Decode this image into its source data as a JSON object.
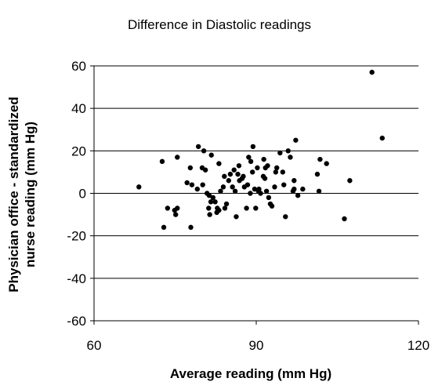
{
  "chart_data": {
    "type": "scatter",
    "title": "Difference in Diastolic readings",
    "xlabel": "Average reading (mm Hg)",
    "ylabel_lines": [
      "Physician office - standardized",
      "nurse reading (mm Hg)"
    ],
    "xlim": [
      60,
      120
    ],
    "ylim": [
      -60,
      60
    ],
    "x_ticks": [
      60,
      90,
      120
    ],
    "y_ticks": [
      -60,
      -40,
      -20,
      0,
      20,
      40,
      60
    ],
    "grid": "horizontal",
    "legend": "none",
    "marker_color": "#000000",
    "points": [
      [
        68.3,
        3
      ],
      [
        72.6,
        15
      ],
      [
        72.9,
        -16
      ],
      [
        73.6,
        -7
      ],
      [
        74.9,
        -8
      ],
      [
        75.1,
        -10
      ],
      [
        75.4,
        17
      ],
      [
        75.4,
        -7
      ],
      [
        77.2,
        5
      ],
      [
        77.8,
        12
      ],
      [
        78.1,
        4
      ],
      [
        77.9,
        -16
      ],
      [
        79.1,
        2
      ],
      [
        79.3,
        22
      ],
      [
        80.0,
        12
      ],
      [
        80.3,
        20
      ],
      [
        80.6,
        11
      ],
      [
        80.1,
        4
      ],
      [
        80.9,
        0
      ],
      [
        81.3,
        -1
      ],
      [
        81.6,
        -4
      ],
      [
        81.4,
        -10
      ],
      [
        81.2,
        -7
      ],
      [
        81.7,
        18
      ],
      [
        82.0,
        -2
      ],
      [
        82.4,
        -4
      ],
      [
        82.7,
        -9
      ],
      [
        82.8,
        -7
      ],
      [
        83.1,
        -8
      ],
      [
        83.1,
        14
      ],
      [
        83.4,
        1
      ],
      [
        83.9,
        3
      ],
      [
        84.1,
        8
      ],
      [
        84.2,
        -7
      ],
      [
        84.5,
        -5
      ],
      [
        84.9,
        6
      ],
      [
        85.6,
        3
      ],
      [
        85.9,
        11
      ],
      [
        86.3,
        -11
      ],
      [
        86.6,
        9
      ],
      [
        86.8,
        13
      ],
      [
        86.9,
        6
      ],
      [
        87.4,
        7
      ],
      [
        87.6,
        8
      ],
      [
        87.8,
        3
      ],
      [
        88.2,
        -7
      ],
      [
        88.4,
        4
      ],
      [
        88.6,
        17
      ],
      [
        89.0,
        15
      ],
      [
        89.3,
        10
      ],
      [
        89.4,
        22
      ],
      [
        89.7,
        2
      ],
      [
        89.9,
        -7
      ],
      [
        90.2,
        12
      ],
      [
        90.4,
        1
      ],
      [
        90.5,
        2
      ],
      [
        90.8,
        0
      ],
      [
        91.3,
        8
      ],
      [
        91.4,
        16
      ],
      [
        91.6,
        7
      ],
      [
        91.7,
        12
      ],
      [
        91.9,
        1
      ],
      [
        92.3,
        -2
      ],
      [
        92.6,
        -5
      ],
      [
        92.9,
        -6
      ],
      [
        93.4,
        3
      ],
      [
        93.6,
        10
      ],
      [
        93.8,
        12
      ],
      [
        94.4,
        19
      ],
      [
        94.9,
        10
      ],
      [
        95.1,
        4
      ],
      [
        95.4,
        -11
      ],
      [
        95.9,
        20
      ],
      [
        96.3,
        17
      ],
      [
        96.8,
        1
      ],
      [
        97.0,
        2
      ],
      [
        97.0,
        6
      ],
      [
        97.3,
        25
      ],
      [
        97.7,
        -1
      ],
      [
        98.6,
        2
      ],
      [
        101.3,
        9
      ],
      [
        101.6,
        1
      ],
      [
        101.8,
        16
      ],
      [
        103.0,
        14
      ],
      [
        106.3,
        -12
      ],
      [
        107.3,
        6
      ],
      [
        111.4,
        57
      ],
      [
        113.3,
        26
      ],
      [
        86.1,
        1
      ],
      [
        85.2,
        9
      ],
      [
        88.9,
        0
      ],
      [
        92.1,
        13
      ]
    ]
  }
}
